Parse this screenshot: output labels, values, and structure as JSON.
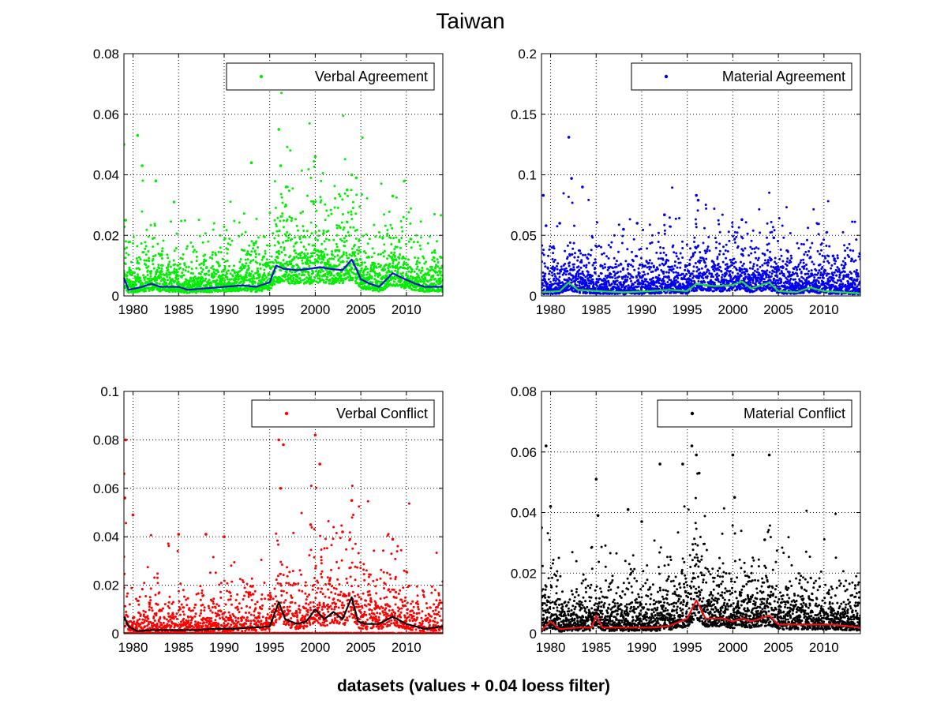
{
  "figure": {
    "title": "Taiwan",
    "subtitle": "datasets (values + 0.04 loess filter)"
  },
  "chart_data": [
    {
      "type": "scatter",
      "series_name": "Verbal Agreement",
      "point_color": "#00ee00",
      "trend_color": "#1010cc",
      "xlim": [
        1979,
        2014
      ],
      "ylim": [
        0,
        0.08
      ],
      "xticks": [
        "1980",
        "1985",
        "1990",
        "1995",
        "2000",
        "2005",
        "2010"
      ],
      "yticks": [
        "0",
        "0.02",
        "0.04",
        "0.06",
        "0.08"
      ],
      "grid": true,
      "legend": "top-right",
      "trend": [
        [
          1979,
          0.006
        ],
        [
          1979.5,
          0.002
        ],
        [
          1981,
          0.003
        ],
        [
          1982,
          0.004
        ],
        [
          1983,
          0.003
        ],
        [
          1985,
          0.003
        ],
        [
          1986,
          0.002
        ],
        [
          1988,
          0.0025
        ],
        [
          1990,
          0.003
        ],
        [
          1992,
          0.0035
        ],
        [
          1993.5,
          0.003
        ],
        [
          1995,
          0.0045
        ],
        [
          1995.7,
          0.01
        ],
        [
          1996.5,
          0.009
        ],
        [
          1998,
          0.0085
        ],
        [
          1999.5,
          0.009
        ],
        [
          2000.5,
          0.0095
        ],
        [
          2001.5,
          0.009
        ],
        [
          2003,
          0.0085
        ],
        [
          2004,
          0.012
        ],
        [
          2004.5,
          0.009
        ],
        [
          2005,
          0.0055
        ],
        [
          2006,
          0.004
        ],
        [
          2007,
          0.003
        ],
        [
          2008.5,
          0.0075
        ],
        [
          2009.5,
          0.006
        ],
        [
          2011,
          0.004
        ],
        [
          2012,
          0.003
        ],
        [
          2014,
          0.003
        ]
      ],
      "baseline": 0.003,
      "spread": 0.008,
      "outliers": [
        [
          1979,
          0.05
        ],
        [
          1979.2,
          0.025
        ],
        [
          1980.5,
          0.053
        ],
        [
          1981,
          0.043
        ],
        [
          1982.5,
          0.038
        ],
        [
          1984.5,
          0.031
        ],
        [
          1993,
          0.044
        ],
        [
          1996,
          0.055
        ],
        [
          1996.2,
          0.043
        ],
        [
          2000,
          0.046
        ],
        [
          2004,
          0.04
        ],
        [
          2004.5,
          0.039
        ],
        [
          2008.5,
          0.033
        ],
        [
          1996.8,
          0.036
        ],
        [
          2003.5,
          0.035
        ]
      ]
    },
    {
      "type": "scatter",
      "series_name": "Material Agreement",
      "point_color": "#0000ee",
      "trend_color": "#22dd33",
      "xlim": [
        1979,
        2014
      ],
      "ylim": [
        0,
        0.2
      ],
      "xticks": [
        "1980",
        "1985",
        "1990",
        "1995",
        "2000",
        "2005",
        "2010"
      ],
      "yticks": [
        "0",
        "0.05",
        "0.1",
        "0.15",
        "0.2"
      ],
      "grid": true,
      "legend": "top-right",
      "trend": [
        [
          1979,
          0.003
        ],
        [
          1981,
          0.004
        ],
        [
          1982,
          0.011
        ],
        [
          1983,
          0.005
        ],
        [
          1985,
          0.004
        ],
        [
          1988,
          0.003
        ],
        [
          1991,
          0.004
        ],
        [
          1993,
          0.005
        ],
        [
          1995,
          0.004
        ],
        [
          1996,
          0.01
        ],
        [
          1998,
          0.008
        ],
        [
          2000,
          0.009
        ],
        [
          2001,
          0.012
        ],
        [
          2002,
          0.006
        ],
        [
          2004,
          0.011
        ],
        [
          2005,
          0.004
        ],
        [
          2007,
          0.003
        ],
        [
          2008.5,
          0.007
        ],
        [
          2010,
          0.004
        ],
        [
          2014,
          0.002
        ]
      ],
      "baseline": 0.006,
      "spread": 0.022,
      "outliers": [
        [
          1979.2,
          0.083
        ],
        [
          1979.5,
          0.058
        ],
        [
          1982,
          0.131
        ],
        [
          1982.3,
          0.097
        ],
        [
          1983.5,
          0.09
        ],
        [
          1992.5,
          0.067
        ],
        [
          1996,
          0.083
        ],
        [
          1996.2,
          0.079
        ],
        [
          2001,
          0.063
        ],
        [
          2004.5,
          0.048
        ],
        [
          1988,
          0.055
        ],
        [
          1989.5,
          0.06
        ],
        [
          2011,
          0.033
        ],
        [
          1981,
          0.06
        ]
      ]
    },
    {
      "type": "scatter",
      "series_name": "Verbal Conflict",
      "point_color": "#ff0000",
      "trend_color": "#000000",
      "xlim": [
        1979,
        2014
      ],
      "ylim": [
        0,
        0.1
      ],
      "xticks": [
        "1980",
        "1985",
        "1990",
        "1995",
        "2000",
        "2005",
        "2010"
      ],
      "yticks": [
        "0",
        "0.02",
        "0.04",
        "0.06",
        "0.08",
        "0.1"
      ],
      "grid": true,
      "legend": "top-right",
      "trend": [
        [
          1979,
          0.007
        ],
        [
          1979.5,
          0.003
        ],
        [
          1980.5,
          0.001
        ],
        [
          1982,
          0.0015
        ],
        [
          1985,
          0.0015
        ],
        [
          1987,
          0.0015
        ],
        [
          1989,
          0.002
        ],
        [
          1991,
          0.002
        ],
        [
          1993,
          0.0025
        ],
        [
          1995,
          0.003
        ],
        [
          1996,
          0.013
        ],
        [
          1996.7,
          0.006
        ],
        [
          1998,
          0.004
        ],
        [
          1999,
          0.005
        ],
        [
          2000,
          0.01
        ],
        [
          2001,
          0.006
        ],
        [
          2002,
          0.009
        ],
        [
          2003,
          0.006
        ],
        [
          2004,
          0.015
        ],
        [
          2004.7,
          0.005
        ],
        [
          2005.5,
          0.004
        ],
        [
          2007,
          0.004
        ],
        [
          2008.5,
          0.007
        ],
        [
          2010,
          0.004
        ],
        [
          2011,
          0.003
        ],
        [
          2012,
          0.002
        ],
        [
          2014,
          0.003
        ]
      ],
      "baseline": 0.002,
      "spread": 0.012,
      "outliers": [
        [
          1979,
          0.066
        ],
        [
          1979.2,
          0.08
        ],
        [
          1979.1,
          0.056
        ],
        [
          1980,
          0.049
        ],
        [
          1985,
          0.041
        ],
        [
          1988,
          0.041
        ],
        [
          1990,
          0.04
        ],
        [
          1996,
          0.08
        ],
        [
          1996.2,
          0.06
        ],
        [
          1996.5,
          0.078
        ],
        [
          2000,
          0.082
        ],
        [
          2000.5,
          0.07
        ],
        [
          2004,
          0.055
        ],
        [
          2008.5,
          0.039
        ],
        [
          1999.5,
          0.045
        ],
        [
          2003,
          0.042
        ]
      ]
    },
    {
      "type": "scatter",
      "series_name": "Material Conflict",
      "point_color": "#000000",
      "trend_color": "#ee1111",
      "xlim": [
        1979,
        2014
      ],
      "ylim": [
        0,
        0.08
      ],
      "xticks": [
        "1980",
        "1985",
        "1990",
        "1995",
        "2000",
        "2005",
        "2010"
      ],
      "yticks": [
        "0",
        "0.02",
        "0.04",
        "0.06",
        "0.08"
      ],
      "grid": true,
      "legend": "top-right",
      "trend": [
        [
          1979,
          0.001
        ],
        [
          1980,
          0.004
        ],
        [
          1981,
          0.0015
        ],
        [
          1983,
          0.002
        ],
        [
          1984.5,
          0.002
        ],
        [
          1985,
          0.006
        ],
        [
          1985.7,
          0.002
        ],
        [
          1988,
          0.002
        ],
        [
          1991,
          0.002
        ],
        [
          1993,
          0.0025
        ],
        [
          1995,
          0.005
        ],
        [
          1996,
          0.011
        ],
        [
          1997,
          0.005
        ],
        [
          1999,
          0.005
        ],
        [
          2000,
          0.004
        ],
        [
          2001,
          0.005
        ],
        [
          2002,
          0.004
        ],
        [
          2004,
          0.006
        ],
        [
          2005,
          0.003
        ],
        [
          2007,
          0.003
        ],
        [
          2009,
          0.003
        ],
        [
          2011,
          0.003
        ],
        [
          2014,
          0.002
        ]
      ],
      "baseline": 0.003,
      "spread": 0.01,
      "outliers": [
        [
          1979.5,
          0.062
        ],
        [
          1979,
          0.035
        ],
        [
          1980,
          0.042
        ],
        [
          1985,
          0.051
        ],
        [
          1985.2,
          0.039
        ],
        [
          1988.5,
          0.041
        ],
        [
          1990,
          0.037
        ],
        [
          1992,
          0.056
        ],
        [
          1994.5,
          0.056
        ],
        [
          1995.5,
          0.062
        ],
        [
          1996,
          0.059
        ],
        [
          1996.3,
          0.053
        ],
        [
          2000,
          0.059
        ],
        [
          2000.2,
          0.045
        ],
        [
          2004,
          0.059
        ],
        [
          2003.5,
          0.031
        ]
      ]
    }
  ]
}
